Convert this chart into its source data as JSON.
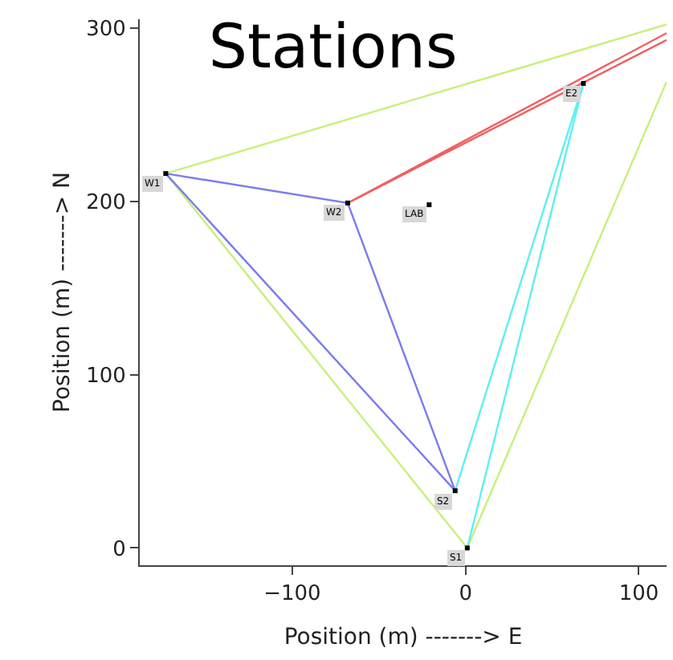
{
  "chart_data": {
    "type": "line",
    "title": "Stations",
    "xlabel": "Position (m) -------> E",
    "ylabel": "Position (m) -------> N",
    "xlim": [
      -188,
      116
    ],
    "ylim": [
      -10,
      305
    ],
    "xticks": [
      -100,
      0,
      100
    ],
    "yticks": [
      0,
      100,
      200,
      300
    ],
    "legend": false,
    "marker": "none",
    "line_style": "solid",
    "series": [
      {
        "color": "#c8f07a",
        "x": [
          116,
          -173,
          1,
          116
        ],
        "values": [
          302,
          216,
          0,
          269
        ]
      },
      {
        "color": "#7b7bf0",
        "x": [
          -173,
          -68,
          -6
        ],
        "values": [
          216,
          199,
          33
        ]
      },
      {
        "color": "#7b7bf0",
        "x": [
          -173,
          -6
        ],
        "values": [
          216,
          33
        ]
      },
      {
        "color": "#5ef0f0",
        "x": [
          -6,
          68,
          1
        ],
        "values": [
          33,
          268,
          0
        ]
      },
      {
        "color": "#f06060",
        "x": [
          116,
          -68,
          116
        ],
        "values": [
          297,
          199,
          293
        ]
      },
      {
        "type": "scatter",
        "marker": "square",
        "color": "#000000",
        "x": [
          -173,
          -68,
          -21,
          68,
          -6,
          1
        ],
        "values": [
          216,
          199,
          198,
          268,
          33,
          0
        ]
      }
    ],
    "annotations": [
      {
        "text": "W1",
        "x": -173,
        "y": 216
      },
      {
        "text": "W2",
        "x": -68,
        "y": 199
      },
      {
        "text": "LAB",
        "x": -21,
        "y": 198
      },
      {
        "text": "E2",
        "x": 68,
        "y": 268
      },
      {
        "text": "S2",
        "x": -6,
        "y": 33
      },
      {
        "text": "S1",
        "x": 1,
        "y": 0
      }
    ]
  }
}
